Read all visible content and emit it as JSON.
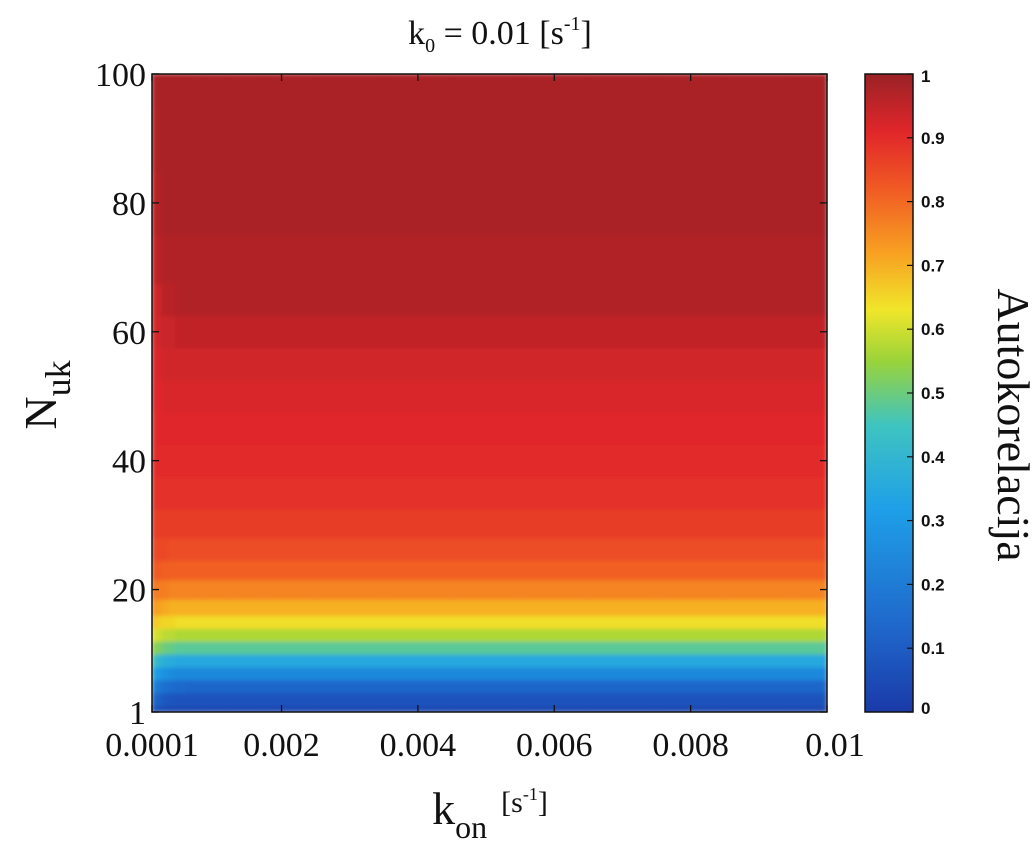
{
  "chart_data": {
    "type": "heatmap",
    "title": {
      "prefix": "k",
      "subscript": "0",
      "mid": " = 0.01 [s",
      "superscript": "-1",
      "suffix": "]"
    },
    "xlabel": {
      "base": "k",
      "subscript": "on",
      "unit_open": "[s",
      "unit_sup": "-1",
      "unit_close": "]"
    },
    "ylabel": {
      "base": "N",
      "subscript": "uk"
    },
    "colorbar_label": "Autokorelacija",
    "x_range": [
      0.0001,
      0.01
    ],
    "y_range": [
      1,
      100
    ],
    "x_ticks": [
      {
        "value": 0.0001,
        "label": "0.0001"
      },
      {
        "value": 0.002,
        "label": "0.002"
      },
      {
        "value": 0.004,
        "label": "0.004"
      },
      {
        "value": 0.006,
        "label": "0.006"
      },
      {
        "value": 0.008,
        "label": "0.008"
      },
      {
        "value": 0.01,
        "label": "0.01"
      }
    ],
    "y_ticks": [
      {
        "value": 1,
        "label": "1"
      },
      {
        "value": 20,
        "label": "20"
      },
      {
        "value": 40,
        "label": "40"
      },
      {
        "value": 60,
        "label": "60"
      },
      {
        "value": 80,
        "label": "80"
      },
      {
        "value": 100,
        "label": "100"
      }
    ],
    "colorbar": {
      "range": [
        0,
        1
      ],
      "colormap": "jet",
      "ticks": [
        {
          "value": 0,
          "label": "0"
        },
        {
          "value": 0.1,
          "label": "0.1"
        },
        {
          "value": 0.2,
          "label": "0.2"
        },
        {
          "value": 0.3,
          "label": "0.3"
        },
        {
          "value": 0.4,
          "label": "0.4"
        },
        {
          "value": 0.5,
          "label": "0.5"
        },
        {
          "value": 0.6,
          "label": "0.6"
        },
        {
          "value": 0.7,
          "label": "0.7"
        },
        {
          "value": 0.8,
          "label": "0.8"
        },
        {
          "value": 0.9,
          "label": "0.9"
        },
        {
          "value": 1,
          "label": "1"
        }
      ]
    },
    "grid": false,
    "x_values": [
      0.0001,
      0.0002,
      0.0003,
      0.0004,
      0.0005,
      0.0007,
      0.001,
      0.0015,
      0.002,
      0.003,
      0.004,
      0.005,
      0.006,
      0.007,
      0.008,
      0.009,
      0.01
    ],
    "y_values": [
      1,
      3,
      5,
      7,
      9,
      11,
      13,
      15,
      17,
      20,
      23,
      26,
      30,
      35,
      40,
      45,
      50,
      55,
      60,
      65,
      70,
      80,
      90,
      100
    ],
    "z_values": [
      [
        0.08,
        0.06,
        0.05,
        0.04,
        0.04,
        0.04,
        0.04,
        0.04,
        0.04,
        0.04,
        0.04,
        0.04,
        0.04,
        0.04,
        0.04,
        0.04,
        0.04
      ],
      [
        0.15,
        0.11,
        0.09,
        0.08,
        0.07,
        0.07,
        0.07,
        0.07,
        0.07,
        0.07,
        0.07,
        0.07,
        0.07,
        0.07,
        0.07,
        0.07,
        0.07
      ],
      [
        0.25,
        0.19,
        0.16,
        0.15,
        0.14,
        0.13,
        0.13,
        0.13,
        0.13,
        0.13,
        0.13,
        0.13,
        0.13,
        0.13,
        0.13,
        0.13,
        0.13
      ],
      [
        0.36,
        0.3,
        0.27,
        0.25,
        0.24,
        0.24,
        0.24,
        0.24,
        0.24,
        0.24,
        0.24,
        0.24,
        0.24,
        0.24,
        0.24,
        0.24,
        0.24
      ],
      [
        0.46,
        0.4,
        0.37,
        0.36,
        0.35,
        0.35,
        0.35,
        0.35,
        0.35,
        0.35,
        0.35,
        0.35,
        0.35,
        0.35,
        0.35,
        0.35,
        0.35
      ],
      [
        0.55,
        0.52,
        0.5,
        0.49,
        0.48,
        0.48,
        0.48,
        0.48,
        0.48,
        0.48,
        0.48,
        0.48,
        0.48,
        0.48,
        0.48,
        0.48,
        0.48
      ],
      [
        0.62,
        0.6,
        0.58,
        0.58,
        0.57,
        0.57,
        0.57,
        0.57,
        0.57,
        0.57,
        0.57,
        0.57,
        0.57,
        0.57,
        0.57,
        0.57,
        0.57
      ],
      [
        0.68,
        0.66,
        0.65,
        0.65,
        0.64,
        0.64,
        0.64,
        0.64,
        0.64,
        0.64,
        0.64,
        0.64,
        0.64,
        0.64,
        0.64,
        0.64,
        0.64
      ],
      [
        0.73,
        0.72,
        0.71,
        0.7,
        0.7,
        0.7,
        0.7,
        0.7,
        0.7,
        0.7,
        0.7,
        0.7,
        0.7,
        0.7,
        0.7,
        0.7,
        0.7
      ],
      [
        0.78,
        0.77,
        0.77,
        0.76,
        0.76,
        0.76,
        0.76,
        0.76,
        0.76,
        0.76,
        0.76,
        0.76,
        0.76,
        0.76,
        0.76,
        0.76,
        0.76
      ],
      [
        0.82,
        0.82,
        0.81,
        0.81,
        0.81,
        0.81,
        0.81,
        0.81,
        0.81,
        0.81,
        0.81,
        0.81,
        0.81,
        0.81,
        0.81,
        0.81,
        0.81
      ],
      [
        0.85,
        0.85,
        0.85,
        0.84,
        0.84,
        0.84,
        0.84,
        0.84,
        0.84,
        0.84,
        0.84,
        0.84,
        0.84,
        0.84,
        0.84,
        0.84,
        0.84
      ],
      [
        0.87,
        0.87,
        0.87,
        0.87,
        0.87,
        0.87,
        0.87,
        0.87,
        0.87,
        0.87,
        0.87,
        0.87,
        0.87,
        0.87,
        0.87,
        0.87,
        0.87
      ],
      [
        0.88,
        0.89,
        0.89,
        0.89,
        0.89,
        0.89,
        0.89,
        0.89,
        0.89,
        0.89,
        0.89,
        0.89,
        0.89,
        0.89,
        0.89,
        0.89,
        0.89
      ],
      [
        0.89,
        0.9,
        0.9,
        0.9,
        0.9,
        0.9,
        0.9,
        0.9,
        0.9,
        0.9,
        0.9,
        0.9,
        0.9,
        0.9,
        0.9,
        0.9,
        0.9
      ],
      [
        0.89,
        0.91,
        0.91,
        0.91,
        0.91,
        0.91,
        0.91,
        0.91,
        0.91,
        0.91,
        0.91,
        0.91,
        0.91,
        0.91,
        0.91,
        0.91,
        0.91
      ],
      [
        0.9,
        0.91,
        0.92,
        0.92,
        0.92,
        0.92,
        0.92,
        0.92,
        0.92,
        0.92,
        0.92,
        0.92,
        0.92,
        0.92,
        0.92,
        0.92,
        0.92
      ],
      [
        0.9,
        0.92,
        0.93,
        0.93,
        0.93,
        0.93,
        0.93,
        0.93,
        0.93,
        0.93,
        0.93,
        0.93,
        0.93,
        0.93,
        0.93,
        0.93,
        0.93
      ],
      [
        0.91,
        0.93,
        0.94,
        0.94,
        0.95,
        0.95,
        0.95,
        0.95,
        0.95,
        0.95,
        0.95,
        0.95,
        0.95,
        0.95,
        0.95,
        0.95,
        0.95
      ],
      [
        0.91,
        0.94,
        0.96,
        0.96,
        0.97,
        0.97,
        0.97,
        0.97,
        0.97,
        0.97,
        0.97,
        0.97,
        0.97,
        0.97,
        0.97,
        0.97,
        0.97
      ],
      [
        0.92,
        0.96,
        0.97,
        0.97,
        0.97,
        0.97,
        0.97,
        0.97,
        0.97,
        0.97,
        0.97,
        0.97,
        0.97,
        0.97,
        0.97,
        0.97,
        0.97
      ],
      [
        0.94,
        0.97,
        0.98,
        0.98,
        0.98,
        0.98,
        0.98,
        0.98,
        0.98,
        0.98,
        0.98,
        0.98,
        0.98,
        0.98,
        0.98,
        0.98,
        0.98
      ],
      [
        0.95,
        0.98,
        0.98,
        0.98,
        0.98,
        0.98,
        0.98,
        0.98,
        0.98,
        0.98,
        0.98,
        0.98,
        0.98,
        0.98,
        0.98,
        0.98,
        0.98
      ],
      [
        0.96,
        0.98,
        0.98,
        0.98,
        0.98,
        0.98,
        0.98,
        0.98,
        0.98,
        0.98,
        0.98,
        0.98,
        0.98,
        0.98,
        0.98,
        0.98,
        0.98
      ]
    ]
  }
}
